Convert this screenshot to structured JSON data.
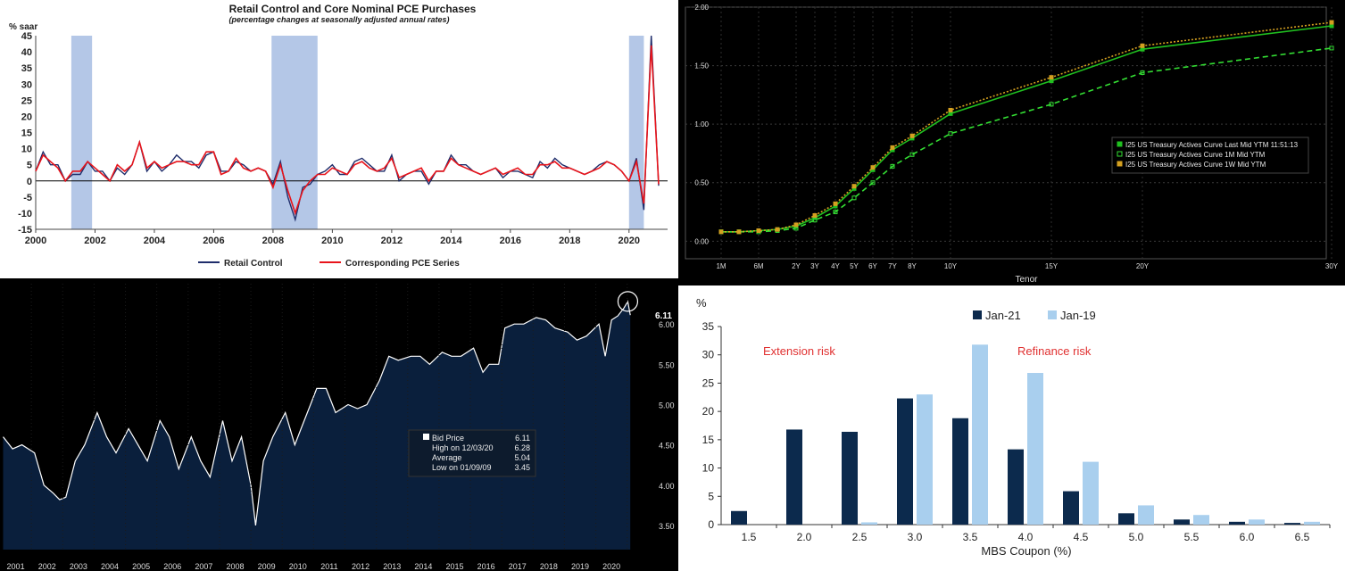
{
  "panels": {
    "retail": {
      "chart_data": {
        "type": "line",
        "title": "Retail Control and Core Nominal PCE Purchases",
        "subtitle": "(percentage changes at seasonally adjusted annual rates)",
        "ylabel": "% saar",
        "ylim": [
          -15,
          45
        ],
        "yticks": [
          -15,
          -10,
          -5,
          0,
          5,
          10,
          15,
          20,
          25,
          30,
          35,
          40,
          45
        ],
        "xlim": [
          2000,
          2021.3
        ],
        "xticks": [
          2000,
          2002,
          2004,
          2006,
          2008,
          2010,
          2012,
          2014,
          2016,
          2018,
          2020
        ],
        "recessions": [
          [
            2001.2,
            2001.9
          ],
          [
            2007.95,
            2009.5
          ],
          [
            2020.0,
            2020.5
          ]
        ],
        "colors": {
          "retail": "#1f2d6b",
          "pce": "#e8141b",
          "recession": "#b4c7e7"
        },
        "series": [
          {
            "name": "Retail Control",
            "x": [
              2000.0,
              2000.25,
              2000.5,
              2000.75,
              2001.0,
              2001.25,
              2001.5,
              2001.75,
              2002.0,
              2002.25,
              2002.5,
              2002.75,
              2003.0,
              2003.25,
              2003.5,
              2003.75,
              2004.0,
              2004.25,
              2004.5,
              2004.75,
              2005.0,
              2005.25,
              2005.5,
              2005.75,
              2006.0,
              2006.25,
              2006.5,
              2006.75,
              2007.0,
              2007.25,
              2007.5,
              2007.75,
              2008.0,
              2008.25,
              2008.5,
              2008.75,
              2009.0,
              2009.25,
              2009.5,
              2009.75,
              2010.0,
              2010.25,
              2010.5,
              2010.75,
              2011.0,
              2011.25,
              2011.5,
              2011.75,
              2012.0,
              2012.25,
              2012.5,
              2012.75,
              2013.0,
              2013.25,
              2013.5,
              2013.75,
              2014.0,
              2014.25,
              2014.5,
              2014.75,
              2015.0,
              2015.25,
              2015.5,
              2015.75,
              2016.0,
              2016.25,
              2016.5,
              2016.75,
              2017.0,
              2017.25,
              2017.5,
              2017.75,
              2018.0,
              2018.25,
              2018.5,
              2018.75,
              2019.0,
              2019.25,
              2019.5,
              2019.75,
              2020.0,
              2020.25,
              2020.5,
              2020.75,
              2021.0
            ],
            "values": [
              3,
              9,
              5,
              5,
              0,
              2,
              2,
              6,
              3,
              3,
              0,
              4,
              2,
              5,
              12,
              3,
              6,
              3,
              5,
              8,
              6,
              6,
              4,
              8,
              9,
              3,
              3,
              6,
              5,
              3,
              4,
              3,
              -1,
              6,
              -5,
              -12,
              -2,
              -1,
              2,
              3,
              5,
              2,
              2,
              6,
              7,
              5,
              3,
              3,
              8,
              0,
              2,
              3,
              3,
              -1,
              3,
              3,
              8,
              5,
              5,
              3,
              2,
              3,
              4,
              1,
              3,
              3,
              2,
              1,
              6,
              4,
              7,
              5,
              4,
              3,
              2,
              3,
              5,
              6,
              5,
              3,
              0,
              7,
              -9,
              45,
              -1.5
            ]
          },
          {
            "name": "Corresponding PCE Series",
            "x": [
              2000.0,
              2000.25,
              2000.5,
              2000.75,
              2001.0,
              2001.25,
              2001.5,
              2001.75,
              2002.0,
              2002.25,
              2002.5,
              2002.75,
              2003.0,
              2003.25,
              2003.5,
              2003.75,
              2004.0,
              2004.25,
              2004.5,
              2004.75,
              2005.0,
              2005.25,
              2005.5,
              2005.75,
              2006.0,
              2006.25,
              2006.5,
              2006.75,
              2007.0,
              2007.25,
              2007.5,
              2007.75,
              2008.0,
              2008.25,
              2008.5,
              2008.75,
              2009.0,
              2009.25,
              2009.5,
              2009.75,
              2010.0,
              2010.25,
              2010.5,
              2010.75,
              2011.0,
              2011.25,
              2011.5,
              2011.75,
              2012.0,
              2012.25,
              2012.5,
              2012.75,
              2013.0,
              2013.25,
              2013.5,
              2013.75,
              2014.0,
              2014.25,
              2014.5,
              2014.75,
              2015.0,
              2015.25,
              2015.5,
              2015.75,
              2016.0,
              2016.25,
              2016.5,
              2016.75,
              2017.0,
              2017.25,
              2017.5,
              2017.75,
              2018.0,
              2018.25,
              2018.5,
              2018.75,
              2019.0,
              2019.25,
              2019.5,
              2019.75,
              2020.0,
              2020.25,
              2020.5,
              2020.75,
              2021.0
            ],
            "values": [
              3,
              8,
              6,
              4,
              0,
              3,
              3,
              6,
              4,
              2,
              0,
              5,
              3,
              5,
              12,
              4,
              6,
              4,
              5,
              6,
              6,
              5,
              5,
              9,
              9,
              2,
              3,
              7,
              4,
              3,
              4,
              3,
              -2,
              5,
              -3,
              -10,
              -3,
              0,
              2,
              2,
              4,
              3,
              2,
              5,
              6,
              4,
              3,
              4,
              7,
              1,
              2,
              3,
              4,
              0,
              3,
              3,
              7,
              5,
              4,
              3,
              2,
              3,
              4,
              2,
              3,
              4,
              2,
              2,
              5,
              5,
              6,
              4,
              4,
              3,
              2,
              3,
              4,
              6,
              5,
              3,
              0,
              6,
              -7,
              42,
              -1
            ]
          }
        ],
        "legend": "bottom"
      }
    },
    "treasury": {
      "chart_data": {
        "type": "line",
        "xlabel": "Tenor",
        "ylim": [
          -0.15,
          2.0
        ],
        "yticks": [
          "0.00",
          "0.50",
          "1.00",
          "1.50",
          "2.00"
        ],
        "xticks": [
          "1M",
          "6M",
          "2Y",
          "3Y",
          "4Y",
          "5Y",
          "6Y",
          "7Y",
          "8Y",
          "10Y",
          "15Y",
          "20Y",
          "30Y"
        ],
        "grid": true,
        "legend": "right",
        "series": [
          {
            "name": "I25 US Treasury Actives Curve Last Mid YTM 11:51:13",
            "color": "#20c020",
            "dash": "solid",
            "values": [
              0.08,
              0.08,
              0.09,
              0.1,
              0.13,
              0.2,
              0.3,
              0.45,
              0.61,
              0.78,
              0.88,
              1.09,
              1.37,
              1.64,
              1.84
            ]
          },
          {
            "name": "I25 US Treasury Actives Curve 1M Mid YTM",
            "color": "#33dd33",
            "dash": "dashed",
            "values": [
              0.08,
              0.08,
              0.08,
              0.09,
              0.11,
              0.18,
              0.25,
              0.37,
              0.5,
              0.64,
              0.74,
              0.92,
              1.17,
              1.44,
              1.65
            ]
          },
          {
            "name": "I25 US Treasury Actives Curve 1W Mid YTM",
            "color": "#d4a020",
            "dash": "dotted",
            "values": [
              0.08,
              0.08,
              0.09,
              0.1,
              0.14,
              0.22,
              0.32,
              0.47,
              0.63,
              0.8,
              0.9,
              1.12,
              1.4,
              1.67,
              1.87
            ]
          }
        ],
        "x": [
          0.083,
          0.25,
          0.5,
          1,
          2,
          3,
          4,
          5,
          6,
          7,
          8,
          10,
          15,
          20,
          30
        ]
      }
    },
    "bid": {
      "chart_data": {
        "type": "area",
        "ylim": [
          3.2,
          6.5
        ],
        "yticks": [
          "3.50",
          "4.00",
          "4.50",
          "5.00",
          "5.50",
          "6.00"
        ],
        "xticks": [
          "2001",
          "2002",
          "2003",
          "2004",
          "2005",
          "2006",
          "2007",
          "2008",
          "2009",
          "2010",
          "2011",
          "2012",
          "2013",
          "2014",
          "2015",
          "2016",
          "2017",
          "2018",
          "2019",
          "2020"
        ],
        "x": [
          2001.0,
          2001.3,
          2001.6,
          2002.0,
          2002.3,
          2002.6,
          2002.8,
          2003.0,
          2003.3,
          2003.6,
          2004.0,
          2004.3,
          2004.6,
          2005.0,
          2005.3,
          2005.6,
          2006.0,
          2006.3,
          2006.6,
          2007.0,
          2007.3,
          2007.6,
          2008.0,
          2008.3,
          2008.6,
          2008.9,
          2009.05,
          2009.3,
          2009.6,
          2010.0,
          2010.3,
          2010.5,
          2010.8,
          2011.0,
          2011.3,
          2011.6,
          2012.0,
          2012.3,
          2012.6,
          2013.0,
          2013.3,
          2013.6,
          2014.0,
          2014.3,
          2014.6,
          2015.0,
          2015.3,
          2015.6,
          2016.0,
          2016.3,
          2016.5,
          2016.8,
          2017.0,
          2017.3,
          2017.6,
          2018.0,
          2018.3,
          2018.6,
          2019.0,
          2019.3,
          2019.6,
          2020.0,
          2020.2,
          2020.4,
          2020.6,
          2020.8,
          2020.92,
          2021.0
        ],
        "values": [
          4.6,
          4.45,
          4.5,
          4.4,
          4.0,
          3.9,
          3.82,
          3.85,
          4.3,
          4.5,
          4.9,
          4.6,
          4.4,
          4.7,
          4.5,
          4.3,
          4.8,
          4.6,
          4.2,
          4.6,
          4.3,
          4.1,
          4.8,
          4.3,
          4.6,
          4.0,
          3.5,
          4.3,
          4.6,
          4.9,
          4.5,
          4.7,
          5.0,
          5.2,
          5.2,
          4.9,
          5.0,
          4.95,
          5.0,
          5.3,
          5.6,
          5.55,
          5.6,
          5.6,
          5.5,
          5.65,
          5.6,
          5.6,
          5.7,
          5.4,
          5.5,
          5.5,
          5.95,
          6.0,
          6.0,
          6.08,
          6.05,
          5.95,
          5.9,
          5.8,
          5.85,
          6.0,
          5.6,
          6.05,
          6.1,
          6.2,
          6.28,
          6.11
        ],
        "colors": {
          "fill": "#0a1f3c",
          "line": "#ffffff"
        },
        "legend": [
          {
            "label": "Bid Price",
            "value": "6.11"
          },
          {
            "label": "High on 12/03/20",
            "value": "6.28"
          },
          {
            "label": "Average",
            "value": "5.04"
          },
          {
            "label": "Low on 01/09/09",
            "value": "3.45"
          }
        ],
        "last_label": "6.11"
      }
    },
    "mbs": {
      "chart_data": {
        "type": "bar",
        "ylabel": "%",
        "xlabel": "MBS Coupon (%)",
        "ylim": [
          0,
          35
        ],
        "yticks": [
          0,
          5,
          10,
          15,
          20,
          25,
          30,
          35
        ],
        "categories": [
          "1.5",
          "2.0",
          "2.5",
          "3.0",
          "3.5",
          "4.0",
          "4.5",
          "5.0",
          "5.5",
          "6.0",
          "6.5"
        ],
        "series": [
          {
            "name": "Jan-21",
            "color": "#0c2a4d",
            "values": [
              2.4,
              16.8,
              16.4,
              22.3,
              18.8,
              13.3,
              5.9,
              2.0,
              0.9,
              0.5,
              0.3
            ]
          },
          {
            "name": "Jan-19",
            "color": "#a9cfee",
            "values": [
              0,
              0,
              0.4,
              23.0,
              31.8,
              26.8,
              11.1,
              3.4,
              1.7,
              0.9,
              0.5
            ]
          }
        ],
        "annotations": [
          "Extension risk",
          "Refinance risk"
        ],
        "annotation_color": "#e03030",
        "legend": "top"
      }
    }
  }
}
